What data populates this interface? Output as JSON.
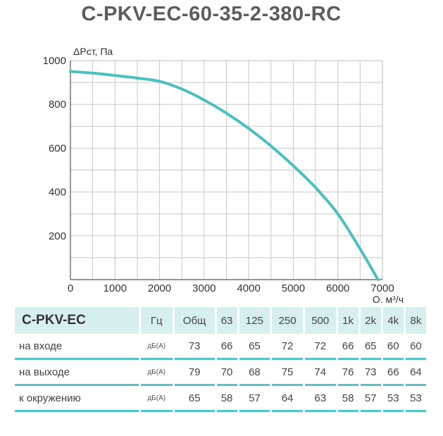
{
  "title": "C-PKV-EC-60-35-2-380-RC",
  "chart_data": {
    "type": "line",
    "ylabel": "ΔPст, Па",
    "xlabel": "Q, м³/ч",
    "xlim": [
      0,
      7000
    ],
    "ylim": [
      0,
      1000
    ],
    "xticks": [
      0,
      1000,
      2000,
      3000,
      4000,
      5000,
      6000,
      7000
    ],
    "yticks": [
      200,
      400,
      600,
      800,
      1000
    ],
    "grid": true,
    "color": "#4cc0c0",
    "series": [
      {
        "x": [
          0,
          500,
          1000,
          1500,
          2000,
          2500,
          3000,
          3500,
          4000,
          4500,
          5000,
          5500,
          6000,
          6500,
          6900
        ],
        "y": [
          950,
          943,
          932,
          920,
          905,
          870,
          820,
          760,
          690,
          610,
          520,
          420,
          300,
          140,
          0
        ]
      }
    ]
  },
  "noise_table": {
    "model": "C-PKV-EC",
    "hz_label": "Гц",
    "headers": [
      "Общ",
      "63",
      "125",
      "250",
      "500",
      "1k",
      "2k",
      "4k",
      "8k"
    ],
    "rows": [
      {
        "label": "на входе",
        "unit": "дБ(А)",
        "values": [
          "73",
          "66",
          "65",
          "72",
          "72",
          "66",
          "65",
          "60",
          "60"
        ]
      },
      {
        "label": "на выходе",
        "unit": "дБ(А)",
        "values": [
          "79",
          "70",
          "68",
          "75",
          "74",
          "76",
          "73",
          "66",
          "64"
        ]
      },
      {
        "label": "к окружению",
        "unit": "дБ(А)",
        "values": [
          "65",
          "58",
          "57",
          "64",
          "63",
          "58",
          "57",
          "53",
          "53"
        ]
      }
    ]
  }
}
